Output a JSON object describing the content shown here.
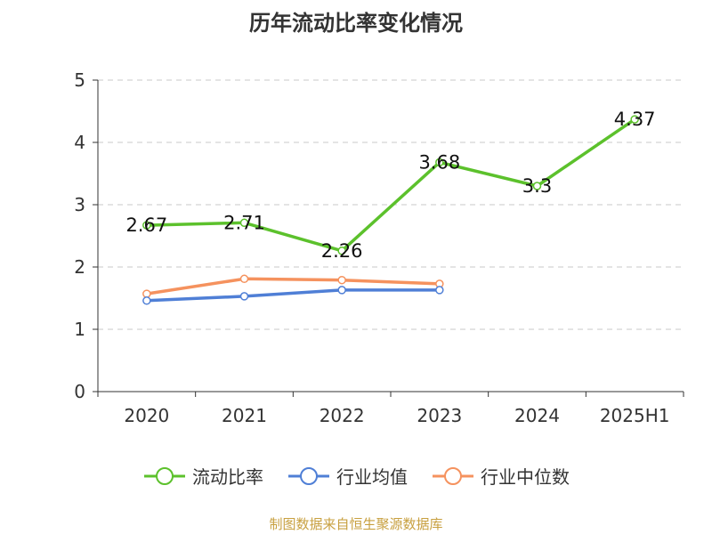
{
  "chart_data": {
    "type": "line",
    "title": "历年流动比率变化情况",
    "categories": [
      "2020",
      "2021",
      "2022",
      "2023",
      "2024",
      "2025H1"
    ],
    "y_ticks": [
      "0",
      "1",
      "2",
      "3",
      "4",
      "5"
    ],
    "ylim": [
      0,
      5
    ],
    "grid": true,
    "legend_position": "bottom",
    "series": [
      {
        "name": "流动比率",
        "color": "#5cc12c",
        "values": [
          2.67,
          2.71,
          2.26,
          3.68,
          3.3,
          4.37
        ],
        "labels": [
          "2.67",
          "2.71",
          "2.26",
          "3.68",
          "3.3",
          "4.37"
        ]
      },
      {
        "name": "行业均值",
        "color": "#4f7fd6",
        "values": [
          1.46,
          1.53,
          1.63,
          1.63,
          null,
          null
        ]
      },
      {
        "name": "行业中位数",
        "color": "#f5925e",
        "values": [
          1.57,
          1.81,
          1.79,
          1.73,
          null,
          null
        ]
      }
    ]
  },
  "source": "制图数据来自恒生聚源数据库"
}
